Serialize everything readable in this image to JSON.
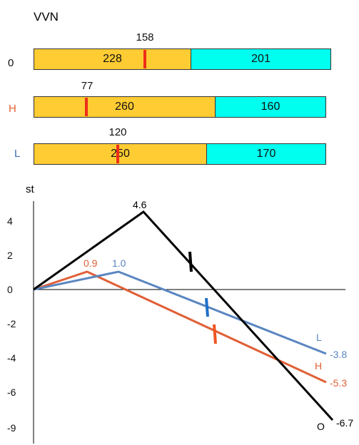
{
  "title": "VVN",
  "scale_bars": [
    {
      "label": "0",
      "label_color": "#111111",
      "marker_value": "158",
      "segment_a": "228",
      "segment_b": "201"
    },
    {
      "label": "H",
      "label_color": "#e06030",
      "marker_value": "77",
      "segment_a": "260",
      "segment_b": "160"
    },
    {
      "label": "L",
      "label_color": "#3a6fb0",
      "marker_value": "120",
      "segment_a": "250",
      "segment_b": "170"
    }
  ],
  "colors": {
    "segment_a": "#ffcc33",
    "segment_b": "#00ffee",
    "marker": "#ee2e18"
  },
  "chart_data": {
    "type": "line",
    "ylabel": "st",
    "yticks": [
      "4",
      "2",
      "0",
      "-2",
      "-4",
      "-6",
      "-9"
    ],
    "series": [
      {
        "name": "O",
        "color": "#000000",
        "points": [
          {
            "label": "",
            "value": 0
          },
          {
            "label": "4.6",
            "value": 4.6
          },
          {
            "label": "-6.7",
            "value": -6.7
          }
        ]
      },
      {
        "name": "H",
        "color": "#e06038",
        "points": [
          {
            "label": "",
            "value": 0
          },
          {
            "label": "0.9",
            "value": 0.9
          },
          {
            "label": "-5.3",
            "value": -5.3
          }
        ]
      },
      {
        "name": "L",
        "color": "#5b86c0",
        "points": [
          {
            "label": "",
            "value": 0
          },
          {
            "label": "1.0",
            "value": 1.0
          },
          {
            "label": "-3.8",
            "value": -3.8
          }
        ]
      }
    ],
    "tick_colors": {
      "O": "#000000",
      "H": "#ee5522",
      "L": "#1e6fc8"
    }
  }
}
